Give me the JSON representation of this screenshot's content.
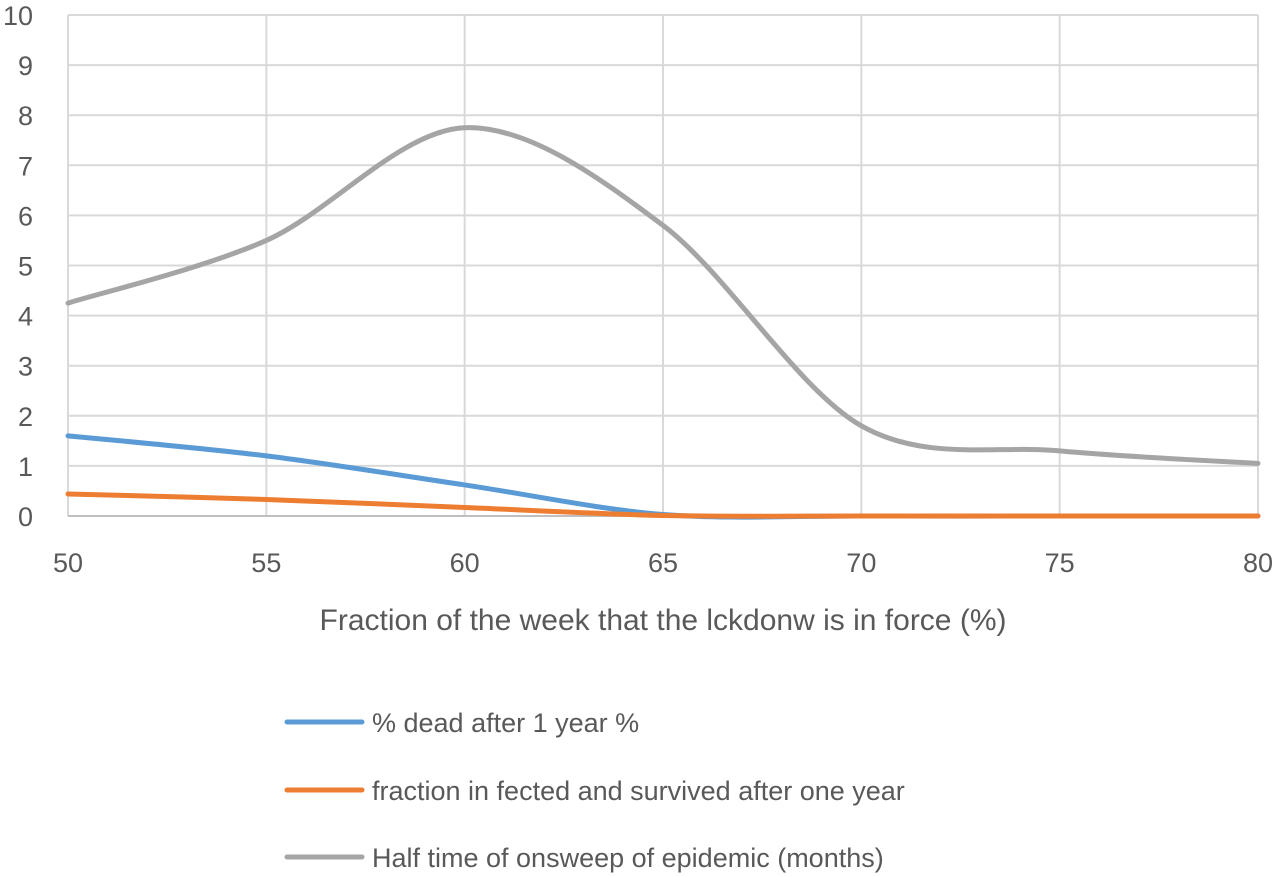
{
  "chart_data": {
    "type": "line",
    "title": "",
    "xlabel": "Fraction of the week that the lckdonw is in force (%)",
    "ylabel": "",
    "xlim": [
      50,
      80
    ],
    "ylim": [
      0,
      10
    ],
    "x_ticks": [
      "50",
      "55",
      "60",
      "65",
      "70",
      "75",
      "80"
    ],
    "y_ticks": [
      "0",
      "1",
      "2",
      "3",
      "4",
      "5",
      "6",
      "7",
      "8",
      "9",
      "10"
    ],
    "grid": true,
    "legend_position": "bottom",
    "x": [
      50,
      55,
      60,
      65,
      70,
      75,
      80
    ],
    "series": [
      {
        "name": "% dead after 1 year %",
        "color": "#5b9bd5",
        "values": [
          1.6,
          1.2,
          0.62,
          0.03,
          0.0,
          0.0,
          0.0
        ]
      },
      {
        "name": "fraction in fected and survived after one year",
        "color": "#ed7d31",
        "values": [
          0.44,
          0.33,
          0.17,
          0.01,
          0.0,
          0.0,
          0.0
        ]
      },
      {
        "name": "Half time of onsweep of epidemic (months)",
        "color": "#a5a5a5",
        "values": [
          4.25,
          5.5,
          7.75,
          5.8,
          1.8,
          1.3,
          1.05
        ]
      }
    ]
  }
}
